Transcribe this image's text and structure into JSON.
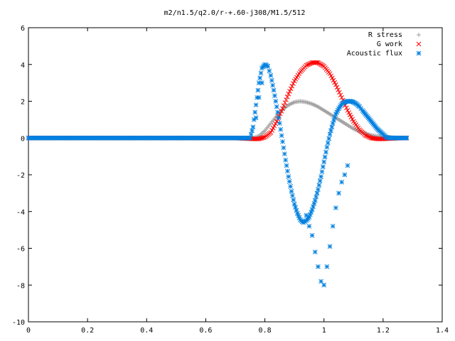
{
  "chart_data": {
    "type": "scatter",
    "title": "m2/n1.5/q2.0/r-+.60-j308/M1.5/512",
    "xlabel": "",
    "ylabel": "",
    "xlim": [
      0,
      1.4
    ],
    "ylim": [
      -10,
      6
    ],
    "x_ticks": [
      "0",
      "0.2",
      "0.4",
      "0.6",
      "0.8",
      "1",
      "1.2",
      "1.4"
    ],
    "y_ticks": [
      "6",
      "4",
      "2",
      "0",
      "-2",
      "-4",
      "-6",
      "-8",
      "-10"
    ],
    "grid": false,
    "legend_position": "top-right",
    "series": [
      {
        "name": "R stress",
        "marker": "plus",
        "color": "#a0a0a0",
        "x": [
          0.0,
          0.1,
          0.2,
          0.3,
          0.4,
          0.5,
          0.6,
          0.7,
          0.76,
          0.78,
          0.8,
          0.82,
          0.84,
          0.86,
          0.88,
          0.9,
          0.92,
          0.94,
          0.96,
          0.98,
          1.0,
          1.02,
          1.04,
          1.06,
          1.08,
          1.1,
          1.12,
          1.14,
          1.16,
          1.18,
          1.2,
          1.22,
          1.24,
          1.26,
          1.28
        ],
        "y": [
          0,
          0,
          0,
          0,
          0,
          0,
          0,
          0,
          0,
          0.1,
          0.4,
          0.8,
          1.2,
          1.55,
          1.8,
          1.95,
          2.0,
          1.95,
          1.85,
          1.7,
          1.5,
          1.3,
          1.1,
          0.9,
          0.7,
          0.5,
          0.35,
          0.25,
          0.15,
          0.1,
          0.05,
          0.05,
          0.02,
          0.01,
          0
        ]
      },
      {
        "name": "G work",
        "marker": "cross",
        "color": "#ff0000",
        "x": [
          0.0,
          0.1,
          0.2,
          0.3,
          0.4,
          0.5,
          0.6,
          0.7,
          0.76,
          0.78,
          0.8,
          0.82,
          0.84,
          0.86,
          0.88,
          0.9,
          0.92,
          0.94,
          0.96,
          0.98,
          1.0,
          1.02,
          1.04,
          1.06,
          1.08,
          1.1,
          1.12,
          1.14,
          1.16,
          1.18,
          1.2,
          1.22,
          1.24,
          1.26,
          1.28
        ],
        "y": [
          0,
          0,
          0,
          0,
          0,
          0,
          0,
          0,
          -0.05,
          -0.05,
          0.05,
          0.3,
          0.9,
          1.6,
          2.4,
          3.1,
          3.6,
          3.95,
          4.1,
          4.1,
          3.9,
          3.5,
          2.9,
          2.2,
          1.5,
          0.9,
          0.45,
          0.15,
          0.0,
          -0.05,
          -0.05,
          -0.03,
          -0.02,
          0,
          0
        ]
      },
      {
        "name": "Acoustic flux",
        "marker": "star",
        "color": "#0080e0",
        "x": [
          0.0,
          0.1,
          0.2,
          0.3,
          0.4,
          0.5,
          0.6,
          0.7,
          0.75,
          0.76,
          0.77,
          0.78,
          0.79,
          0.8,
          0.81,
          0.82,
          0.83,
          0.84,
          0.85,
          0.86,
          0.87,
          0.88,
          0.89,
          0.9,
          0.91,
          0.92,
          0.93,
          0.94,
          0.95,
          0.96,
          0.97,
          0.98,
          0.99,
          1.0,
          1.01,
          1.02,
          1.03,
          1.04,
          1.05,
          1.06,
          1.07,
          1.08,
          1.09,
          1.1,
          1.11,
          1.12,
          1.13,
          1.14,
          1.15,
          1.16,
          1.17,
          1.18,
          1.19,
          1.2,
          1.21,
          1.22,
          1.23,
          1.24,
          1.25,
          1.26,
          1.27,
          1.28
        ],
        "y": [
          0,
          0,
          0,
          0,
          0,
          0,
          0,
          0,
          0,
          0.6,
          1.8,
          3.0,
          3.8,
          4.0,
          3.9,
          3.4,
          2.6,
          1.7,
          0.8,
          -0.2,
          -1.2,
          -2.1,
          -2.9,
          -3.6,
          -4.1,
          -4.45,
          -4.6,
          -4.5,
          -4.3,
          -3.9,
          -3.4,
          -2.8,
          -2.1,
          -1.3,
          -0.5,
          0.2,
          0.8,
          1.3,
          1.6,
          1.85,
          1.95,
          2.0,
          2.0,
          1.95,
          1.85,
          1.7,
          1.5,
          1.3,
          1.1,
          0.9,
          0.7,
          0.5,
          0.35,
          0.2,
          0.05,
          0.0,
          0.0,
          0.0,
          0.0,
          0.0,
          0.0,
          0.0
        ]
      },
      {
        "name": "",
        "marker": "star",
        "color": "#0080e0",
        "x": [
          0.77,
          0.78,
          0.79,
          0.94,
          0.95,
          0.96,
          0.97,
          0.98,
          0.99,
          1.0,
          1.01,
          1.02,
          1.03,
          1.04,
          1.05,
          1.06,
          1.07,
          1.08
        ],
        "y": [
          1.1,
          2.2,
          3.0,
          -4.2,
          -4.8,
          -5.3,
          -6.2,
          -7.0,
          -7.8,
          -8.0,
          -7.0,
          -5.9,
          -4.8,
          -3.8,
          -3.0,
          -2.4,
          -2.0,
          -1.5
        ]
      }
    ]
  }
}
